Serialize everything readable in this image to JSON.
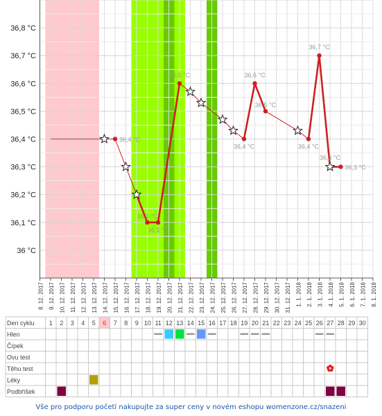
{
  "chart_data": {
    "type": "line",
    "y_axis": {
      "min": 35.9,
      "max": 36.9,
      "ticks": [
        36.0,
        36.1,
        36.2,
        36.3,
        36.4,
        36.5,
        36.6,
        36.7,
        36.8
      ],
      "tick_labels": [
        "36 °C",
        "36,1 °C",
        "36,2 °C",
        "36,3 °C",
        "36,4 °C",
        "36,5 °C",
        "36,6 °C",
        "36,7 °C",
        "36,8 °C"
      ]
    },
    "dates": [
      "8. 12. 2017",
      "9. 12. 2017",
      "10. 12. 2017",
      "11. 12. 2017",
      "12. 12. 2017",
      "13. 12. 2017",
      "14. 12. 2017",
      "15. 12. 2017",
      "16. 12. 2017",
      "17. 12. 2017",
      "18. 12. 2017",
      "19. 12. 2017",
      "20. 12. 2017",
      "21. 12. 2017",
      "22. 12. 2017",
      "23. 12. 2017",
      "24. 12. 2017",
      "25. 12. 2017",
      "26. 12. 2017",
      "27. 12. 2017",
      "28. 12. 2017",
      "29. 12. 2017",
      "30. 12. 2017",
      "31. 12. 2017",
      "1. 1. 2018",
      "2. 1. 2018",
      "3. 1. 2018",
      "4. 1. 2018",
      "5. 1. 2018",
      "6. 1. 2018",
      "7. 1. 2018",
      "8. 1. 2018"
    ],
    "pre_line": {
      "from_date": "9. 12. 2017",
      "to_date": "14. 12. 2017",
      "value": 36.4
    },
    "series": [
      {
        "points": [
          {
            "date": "14. 12. 2017",
            "value": 36.4,
            "marker": "star"
          },
          {
            "date": "15. 12. 2017",
            "value": 36.4,
            "marker": "dot",
            "label": "36,4 °C"
          },
          {
            "date": "16. 12. 2017",
            "value": 36.3,
            "marker": "star"
          },
          {
            "date": "17. 12. 2017",
            "value": 36.2,
            "marker": "star"
          },
          {
            "date": "18. 12. 2017",
            "value": 36.1,
            "marker": "dot",
            "label": "36,1 °C"
          },
          {
            "date": "19. 12. 2017",
            "value": 36.1,
            "marker": "dot",
            "label": "36,1 °C"
          },
          {
            "date": "21. 12. 2017",
            "value": 36.6,
            "marker": "dot",
            "label": "36,6 °C"
          },
          {
            "date": "22. 12. 2017",
            "value": 36.57,
            "marker": "star"
          },
          {
            "date": "23. 12. 2017",
            "value": 36.53,
            "marker": "star"
          },
          {
            "date": "25. 12. 2017",
            "value": 36.47,
            "marker": "star"
          },
          {
            "date": "26. 12. 2017",
            "value": 36.43,
            "marker": "star"
          },
          {
            "date": "27. 12. 2017",
            "value": 36.4,
            "marker": "dot",
            "label": "36,4 °C"
          },
          {
            "date": "28. 12. 2017",
            "value": 36.6,
            "marker": "dot",
            "label": "36,6 °C"
          },
          {
            "date": "29. 12. 2017",
            "value": 36.5,
            "marker": "dot",
            "label": "36,5 °C"
          },
          {
            "date": "1. 1. 2018",
            "value": 36.43,
            "marker": "star"
          },
          {
            "date": "2. 1. 2018",
            "value": 36.4,
            "marker": "dot",
            "label": "36,4 °C"
          },
          {
            "date": "3. 1. 2018",
            "value": 36.7,
            "marker": "dot",
            "label": "36,7 °C"
          },
          {
            "date": "4. 1. 2018",
            "value": 36.3,
            "marker": "star",
            "label": "36,3 °C"
          },
          {
            "date": "5. 1. 2018",
            "value": 36.3,
            "marker": "dot",
            "label": "36,3 °C"
          }
        ]
      }
    ],
    "bands": [
      {
        "from_date": "8. 12. 2017",
        "to_date": "13. 12. 2017",
        "color": "#ffc9cd"
      },
      {
        "from_date": "16. 12. 2017",
        "to_date": "20. 12. 2017",
        "color": "#99ff00"
      },
      {
        "from_date": "19. 12. 2017",
        "to_date": "20. 12. 2017",
        "color": "#66cc00"
      },
      {
        "from_date": "20. 12. 2017",
        "to_date": "21. 12. 2017",
        "color": "#99ff00"
      },
      {
        "from_date": "23. 12. 2017",
        "to_date": "24. 12. 2017",
        "color": "#66cc00"
      }
    ],
    "thick_segments": [
      {
        "from_date": "17. 12. 2017",
        "to_date": "21. 12. 2017"
      },
      {
        "from_date": "27. 12. 2017",
        "to_date": "29. 12. 2017"
      },
      {
        "from_date": "2. 1. 2018",
        "to_date": "5. 1. 2018"
      }
    ],
    "grid": true,
    "colors": {
      "line": "#cc2020",
      "dot": "#cc2020",
      "pre_line": "#b07070",
      "label": "#999999"
    }
  },
  "table": {
    "header_label": "Den cyklu",
    "days": [
      1,
      2,
      3,
      4,
      5,
      6,
      7,
      8,
      9,
      10,
      11,
      12,
      13,
      14,
      15,
      16,
      17,
      18,
      19,
      20,
      21,
      22,
      23,
      24,
      25,
      26,
      27,
      28,
      29,
      30
    ],
    "highlight_day": 6,
    "rows": [
      {
        "label": "Hlen",
        "cells": [
          {
            "day": 11,
            "mark": "dash"
          },
          {
            "day": 12,
            "mark": "box",
            "color": "#33ccff"
          },
          {
            "day": 13,
            "mark": "box",
            "color": "#00e040"
          },
          {
            "day": 14,
            "mark": "dash"
          },
          {
            "day": 15,
            "mark": "box",
            "color": "#6699ff"
          },
          {
            "day": 16,
            "mark": "dash"
          },
          {
            "day": 19,
            "mark": "dash"
          },
          {
            "day": 20,
            "mark": "dash"
          },
          {
            "day": 21,
            "mark": "dash"
          },
          {
            "day": 26,
            "mark": "dash"
          },
          {
            "day": 27,
            "mark": "dash"
          }
        ]
      },
      {
        "label": "Čípek",
        "cells": []
      },
      {
        "label": "Ovu test",
        "cells": []
      },
      {
        "label": "Těhu test",
        "cells": [
          {
            "day": 27,
            "mark": "flower",
            "color": "#e02020"
          }
        ]
      },
      {
        "label": "Léky",
        "cells": [
          {
            "day": 5,
            "mark": "box",
            "color": "#b3a000"
          }
        ]
      },
      {
        "label": "Podbříšek",
        "cells": [
          {
            "day": 2,
            "mark": "box",
            "color": "#800040"
          },
          {
            "day": 27,
            "mark": "box",
            "color": "#800040"
          },
          {
            "day": 28,
            "mark": "box",
            "color": "#800040"
          }
        ]
      }
    ]
  },
  "footer": {
    "text": "Vše pro podporu početí nakupujte za super ceny v novém eshopu womenzone.cz/snazeni"
  }
}
